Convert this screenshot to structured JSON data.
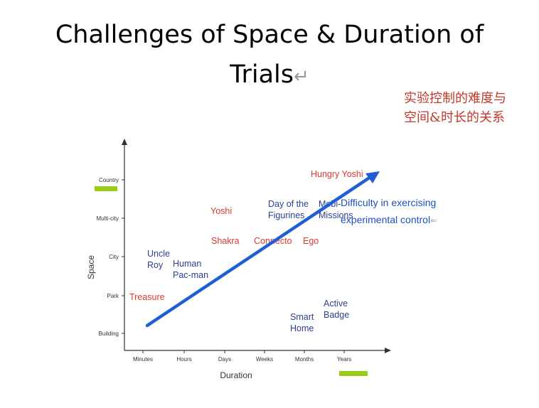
{
  "slide": {
    "title_line1": "Challenges of Space & Duration of",
    "title_line2": "Trials",
    "return_mark": "↵",
    "note_cn_line1": "实验控制的难度与",
    "note_cn_line2": "空间&时长的关系"
  },
  "chart_data": {
    "type": "scatter",
    "xlabel": "Duration",
    "ylabel": "Space",
    "x_categories": [
      "Minutes",
      "Hours",
      "Days",
      "Weeks",
      "Months",
      "Years"
    ],
    "y_categories": [
      "Building",
      "Park",
      "City",
      "Multi-city",
      "Country"
    ],
    "points": [
      {
        "label": "Treasure",
        "x": "Minutes",
        "y": "Park",
        "color": "red"
      },
      {
        "label": "Uncle Roy",
        "x": "Minutes",
        "y": "City",
        "color": "blue"
      },
      {
        "label": "Human Pac-man",
        "x": "Hours",
        "y": "City",
        "color": "blue"
      },
      {
        "label": "Yoshi",
        "x": "Days",
        "y": "Multi-city",
        "color": "red"
      },
      {
        "label": "Shakra",
        "x": "Days",
        "y": "City",
        "color": "red"
      },
      {
        "label": "Connecto",
        "x": "Weeks",
        "y": "City",
        "color": "red"
      },
      {
        "label": "Ego",
        "x": "Months",
        "y": "City",
        "color": "red"
      },
      {
        "label": "Day of the Figurines",
        "x": "Months",
        "y": "Multi-city",
        "color": "blue"
      },
      {
        "label": "Mobi-Missions",
        "x": "Years",
        "y": "Multi-city",
        "color": "blue"
      },
      {
        "label": "Hungry Yoshi",
        "x": "Years",
        "y": "Country",
        "color": "red"
      },
      {
        "label": "Smart Home",
        "x": "Months",
        "y": "Building",
        "color": "blue"
      },
      {
        "label": "Active Badge",
        "x": "Years",
        "y": "Building",
        "color": "blue"
      }
    ],
    "annotation_line1": "Difficulty in exercising",
    "annotation_line2": "experimental control",
    "annotation_mark": "⇐"
  },
  "colors": {
    "red": "#e0392e",
    "blue": "#2d3f8f",
    "arrow": "#1f5fd6",
    "annotation": "#1f4fbf",
    "highlight": "#9acd1a",
    "axis": "#333333"
  }
}
